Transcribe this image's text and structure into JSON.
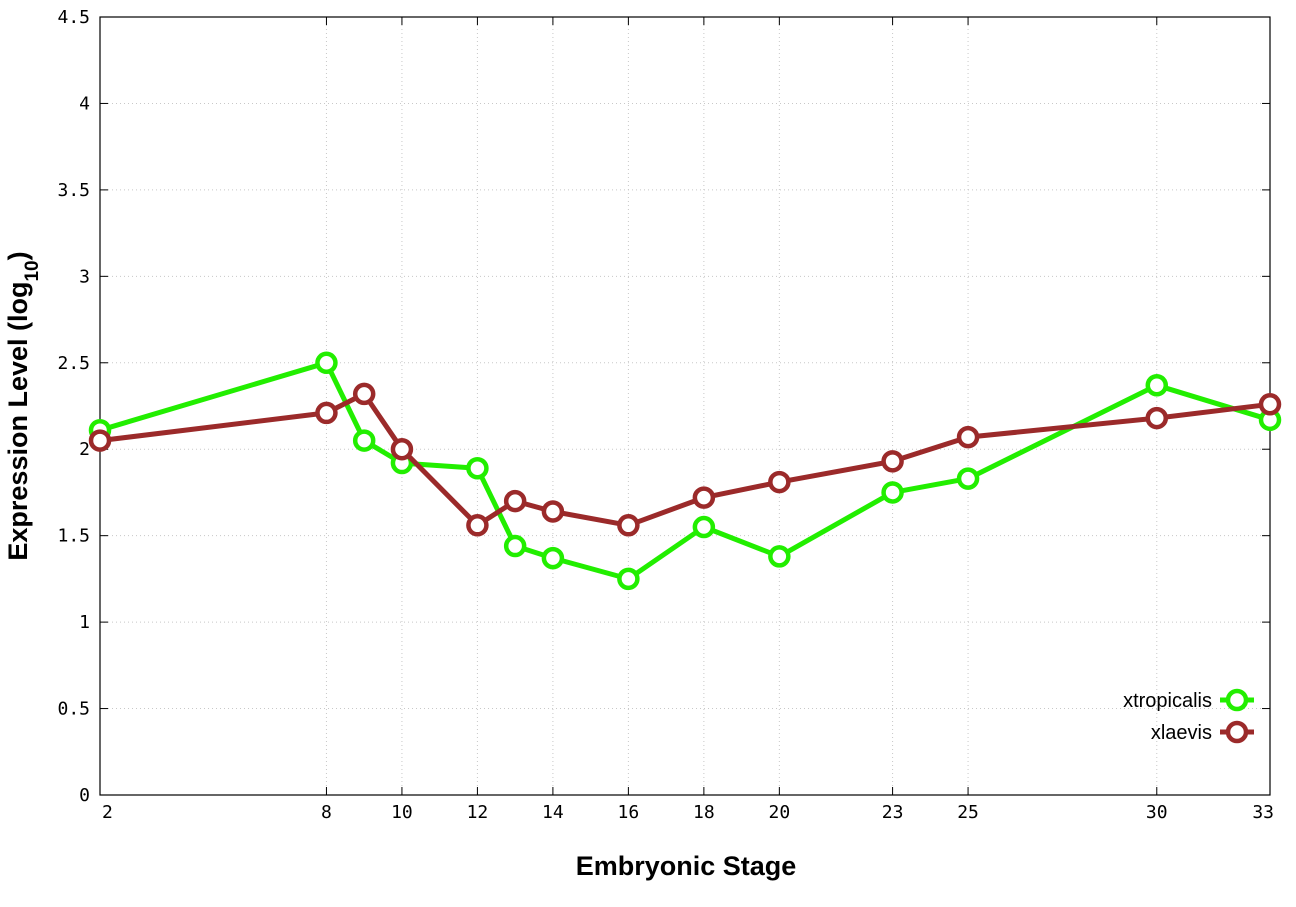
{
  "chart_data": {
    "type": "line",
    "xlabel": "Embryonic Stage",
    "ylabel_main": "Expression Level (log",
    "ylabel_sub": "10",
    "ylabel_close": ")",
    "xlim": [
      2,
      33
    ],
    "ylim": [
      0,
      4.5
    ],
    "xticks": [
      2,
      8,
      10,
      12,
      14,
      16,
      18,
      20,
      23,
      25,
      30,
      33
    ],
    "yticks": [
      0,
      0.5,
      1,
      1.5,
      2,
      2.5,
      3,
      3.5,
      4,
      4.5
    ],
    "x_tick_labels": [
      "2",
      "8",
      "10",
      "12",
      "14",
      "16",
      "18",
      "20",
      "23",
      "25",
      "30",
      "33"
    ],
    "y_tick_labels": [
      "0",
      "0.5",
      "1",
      "1.5",
      "2",
      "2.5",
      "3",
      "3.5",
      "4",
      "4.5"
    ],
    "grid": true,
    "legend_position": "bottom-right",
    "series": [
      {
        "name": "xtropicalis",
        "color": "#22ee00",
        "x": [
          2,
          8,
          9,
          10,
          12,
          13,
          14,
          16,
          18,
          20,
          23,
          25,
          30,
          33
        ],
        "y": [
          2.11,
          2.5,
          2.05,
          1.92,
          1.89,
          1.44,
          1.37,
          1.25,
          1.55,
          1.38,
          1.75,
          1.83,
          2.37,
          2.17
        ]
      },
      {
        "name": "xlaevis",
        "color": "#9b2a2a",
        "x": [
          2,
          8,
          9,
          10,
          12,
          13,
          14,
          16,
          18,
          20,
          23,
          25,
          30,
          33
        ],
        "y": [
          2.05,
          2.21,
          2.32,
          2.0,
          1.56,
          1.7,
          1.64,
          1.56,
          1.72,
          1.81,
          1.93,
          2.07,
          2.18,
          2.26
        ]
      }
    ]
  }
}
